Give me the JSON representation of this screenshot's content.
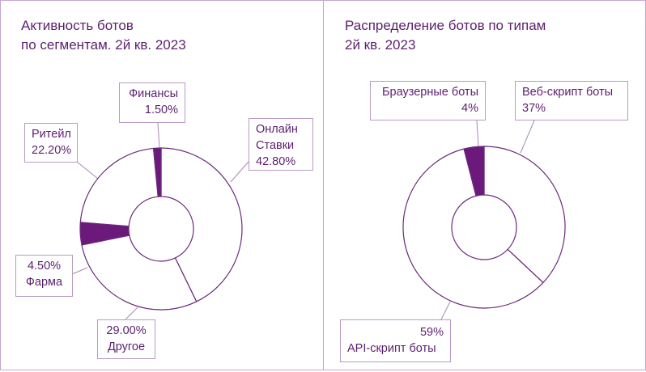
{
  "colors": {
    "highlight": "#6b1a7b",
    "outline": "#6b2a7b",
    "leader": "#a88ab4",
    "border": "#c6a6d2",
    "text": "#5c1f6e"
  },
  "chart_data": [
    {
      "type": "pie",
      "donut": true,
      "title_line1": "Активность ботов",
      "title_line2": "по сегментам. 2й кв. 2023",
      "start": "top, clockwise",
      "slices": [
        {
          "name": "Онлайн Ставки",
          "name_line1": "Онлайн",
          "name_line2": "Ставки",
          "value": 42.8,
          "label": "42.80%",
          "highlight": false
        },
        {
          "name": "Другое",
          "value": 29.0,
          "label": "29.00%",
          "highlight": false
        },
        {
          "name": "Фарма",
          "value": 4.5,
          "label": "4.50%",
          "highlight": true
        },
        {
          "name": "Ритейл",
          "value": 22.2,
          "label": "22.20%",
          "highlight": false
        },
        {
          "name": "Финансы",
          "value": 1.5,
          "label": "1.50%",
          "highlight": true
        }
      ]
    },
    {
      "type": "pie",
      "donut": true,
      "title_line1": "Распределение ботов по типам",
      "title_line2": "2й кв. 2023",
      "start": "top, clockwise",
      "slices": [
        {
          "name": "Веб-скрипт боты",
          "value": 37,
          "label": "37%",
          "highlight": false
        },
        {
          "name": "API-скрипт боты",
          "value": 59,
          "label": "59%",
          "highlight": false
        },
        {
          "name": "Браузерные боты",
          "value": 4,
          "label": "4%",
          "highlight": true
        }
      ]
    }
  ]
}
